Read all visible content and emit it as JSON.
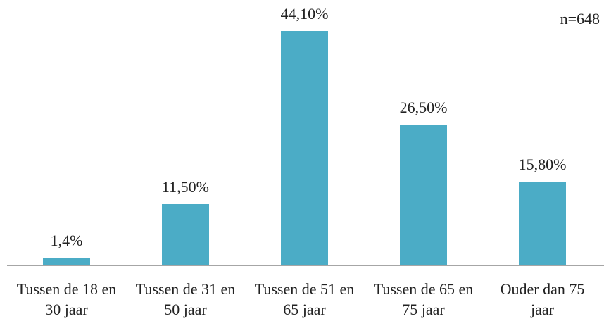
{
  "chart_data": {
    "type": "bar",
    "annotation": "n=648",
    "categories": [
      "Tussen de 18 en 30 jaar",
      "Tussen de 31 en 50 jaar",
      "Tussen de 51 en 65 jaar",
      "Tussen de 65 en 75 jaar",
      "Ouder dan 75 jaar"
    ],
    "values": [
      1.4,
      11.5,
      44.1,
      26.5,
      15.8
    ],
    "value_labels": [
      "1,4%",
      "11,50%",
      "44,10%",
      "26,50%",
      "15,80%"
    ],
    "color": "#4bacc6"
  }
}
